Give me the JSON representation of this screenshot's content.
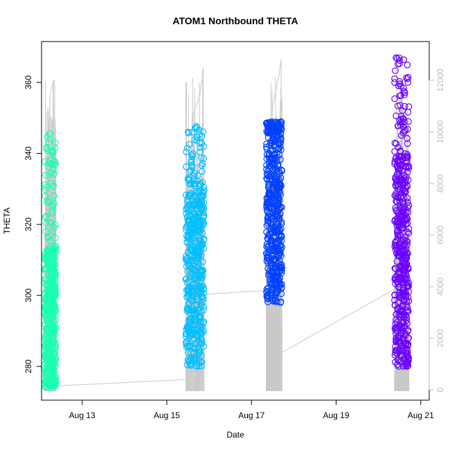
{
  "chart_data": {
    "type": "scatter",
    "title": "ATOM1 Northbound THETA",
    "xlabel": "Date",
    "ylabel": "THETA",
    "x_ticks": [
      "Aug 13",
      "Aug 15",
      "Aug 17",
      "Aug 19",
      "Aug 21"
    ],
    "x_tick_days": [
      13,
      15,
      17,
      19,
      21
    ],
    "xlim_days": [
      12.04,
      21.2
    ],
    "ylim": [
      270.5,
      371.5
    ],
    "y_ticks": [
      280,
      300,
      320,
      340,
      360
    ],
    "y2lim": [
      -400,
      13500
    ],
    "y2_ticks": [
      0,
      2000,
      4000,
      6000,
      8000,
      10000,
      12000
    ],
    "grid": false,
    "legend": "none",
    "series": [
      {
        "color": "#1affb0",
        "x_range_days": [
          12.12,
          12.38
        ],
        "theta_range": [
          272,
          346
        ],
        "dense_range": [
          274,
          314
        ],
        "sparse_top": [
          315,
          346
        ]
      },
      {
        "color": "#00bfff",
        "x_range_days": [
          15.45,
          15.88
        ],
        "theta_range": [
          275,
          348
        ],
        "dense_range": [
          280,
          330
        ],
        "sparse_top": [
          330,
          348
        ]
      },
      {
        "color": "#0040ff",
        "x_range_days": [
          17.35,
          17.72
        ],
        "theta_range": [
          294,
          349
        ],
        "dense_range": [
          298,
          346
        ],
        "sparse_top": [
          346,
          349
        ]
      },
      {
        "color": "#6a00ff",
        "x_range_days": [
          20.38,
          20.72
        ],
        "theta_range": [
          276,
          367
        ],
        "dense_range": [
          280,
          340
        ],
        "sparse_top": [
          340,
          367
        ]
      }
    ],
    "secondary_line": {
      "color": "#c8c8c8",
      "points": [
        {
          "x": 12.12,
          "y": 100
        },
        {
          "x": 12.18,
          "y": 9000
        },
        {
          "x": 12.25,
          "y": 11500
        },
        {
          "x": 12.32,
          "y": 12000
        },
        {
          "x": 12.38,
          "y": 150
        },
        {
          "x": 15.45,
          "y": 400
        },
        {
          "x": 15.6,
          "y": 10600
        },
        {
          "x": 15.78,
          "y": 11400
        },
        {
          "x": 15.86,
          "y": 12500
        },
        {
          "x": 15.88,
          "y": 3700
        },
        {
          "x": 17.35,
          "y": 3850
        },
        {
          "x": 17.5,
          "y": 11000
        },
        {
          "x": 17.65,
          "y": 12200
        },
        {
          "x": 17.7,
          "y": 12800
        },
        {
          "x": 17.72,
          "y": 1450
        },
        {
          "x": 20.38,
          "y": 3900
        },
        {
          "x": 20.48,
          "y": 9200
        },
        {
          "x": 20.6,
          "y": 10500
        },
        {
          "x": 20.72,
          "y": 9700
        }
      ]
    }
  }
}
